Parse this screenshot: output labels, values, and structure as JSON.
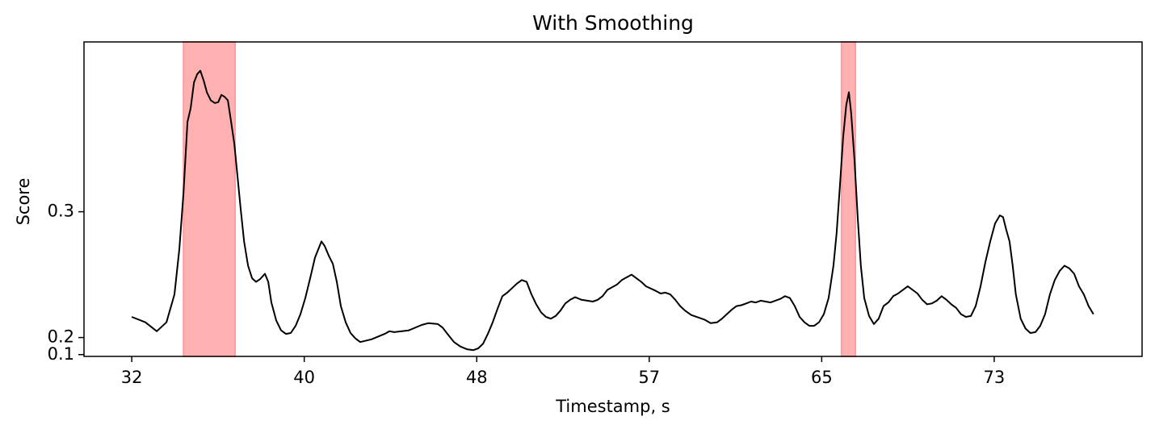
{
  "chart_data": {
    "type": "line",
    "title": "With Smoothing",
    "x_label": "Timestamp, s",
    "y_label": "Score",
    "xlim": [
      29.73,
      80.03
    ],
    "ylim": [
      0.139,
      0.489
    ],
    "xticks": [
      32,
      {
        "value": 40.2,
        "label": "40"
      },
      {
        "value": 48.4,
        "label": "48"
      },
      {
        "value": 56.6,
        "label": "57"
      },
      {
        "value": 64.8,
        "label": "65"
      },
      73
    ],
    "yticks": [
      {
        "value": 0.141,
        "label": "0.1"
      },
      {
        "value": 0.16,
        "label": "0.2"
      },
      0.3
    ],
    "spans": [
      [
        34.46,
        36.91
      ],
      [
        65.74,
        66.4
      ]
    ],
    "span_color": "#ff9e9e",
    "series": [
      {
        "color": "#000000",
        "x": [
          32.0,
          32.65,
          33.19,
          33.65,
          34.03,
          34.26,
          34.46,
          34.65,
          34.8,
          34.96,
          35.11,
          35.26,
          35.42,
          35.57,
          35.76,
          35.95,
          36.11,
          36.26,
          36.41,
          36.57,
          36.72,
          36.88,
          37.03,
          37.18,
          37.34,
          37.53,
          37.72,
          37.91,
          38.1,
          38.33,
          38.49,
          38.64,
          38.87,
          39.1,
          39.33,
          39.56,
          39.79,
          40.02,
          40.25,
          40.48,
          40.71,
          41.02,
          41.17,
          41.37,
          41.56,
          41.75,
          41.94,
          42.17,
          42.4,
          42.63,
          42.86,
          43.4,
          44.02,
          44.25,
          44.48,
          45.17,
          45.78,
          46.09,
          46.55,
          46.78,
          47.01,
          47.32,
          47.62,
          47.93,
          48.24,
          48.47,
          48.7,
          48.93,
          49.16,
          49.39,
          49.62,
          49.85,
          50.08,
          50.31,
          50.54,
          50.77,
          51.0,
          51.23,
          51.46,
          51.69,
          51.92,
          52.15,
          52.38,
          52.61,
          52.84,
          53.08,
          53.38,
          53.92,
          54.15,
          54.38,
          54.61,
          55.07,
          55.3,
          55.76,
          55.99,
          56.22,
          56.45,
          56.91,
          57.14,
          57.37,
          57.6,
          57.84,
          58.07,
          58.3,
          58.6,
          59.22,
          59.52,
          59.83,
          60.06,
          60.29,
          60.52,
          60.75,
          60.98,
          61.21,
          61.44,
          61.67,
          61.9,
          62.37,
          62.83,
          63.06,
          63.29,
          63.52,
          63.75,
          63.98,
          64.21,
          64.44,
          64.67,
          64.9,
          65.13,
          65.36,
          65.51,
          65.67,
          65.82,
          65.97,
          66.09,
          66.2,
          66.36,
          66.51,
          66.66,
          66.82,
          67.05,
          67.28,
          67.51,
          67.74,
          67.97,
          68.2,
          68.43,
          68.89,
          69.12,
          69.35,
          69.58,
          69.81,
          70.04,
          70.27,
          70.5,
          70.73,
          70.96,
          71.19,
          71.42,
          71.65,
          71.89,
          72.12,
          72.35,
          72.58,
          72.81,
          73.04,
          73.27,
          73.42,
          73.57,
          73.73,
          73.88,
          74.03,
          74.26,
          74.49,
          74.72,
          74.96,
          75.19,
          75.42,
          75.65,
          75.88,
          76.11,
          76.34,
          76.57,
          76.8,
          77.03,
          77.26,
          77.49,
          77.72
        ],
        "values": [
          0.183,
          0.177,
          0.167,
          0.177,
          0.208,
          0.258,
          0.321,
          0.4,
          0.415,
          0.444,
          0.453,
          0.457,
          0.446,
          0.433,
          0.424,
          0.421,
          0.422,
          0.43,
          0.428,
          0.424,
          0.401,
          0.375,
          0.339,
          0.303,
          0.267,
          0.24,
          0.226,
          0.222,
          0.225,
          0.231,
          0.222,
          0.199,
          0.179,
          0.168,
          0.164,
          0.165,
          0.173,
          0.186,
          0.204,
          0.226,
          0.249,
          0.267,
          0.262,
          0.251,
          0.242,
          0.222,
          0.195,
          0.177,
          0.165,
          0.159,
          0.155,
          0.158,
          0.164,
          0.167,
          0.166,
          0.168,
          0.174,
          0.176,
          0.175,
          0.171,
          0.164,
          0.155,
          0.15,
          0.147,
          0.146,
          0.148,
          0.153,
          0.164,
          0.177,
          0.192,
          0.206,
          0.21,
          0.215,
          0.22,
          0.224,
          0.222,
          0.208,
          0.197,
          0.188,
          0.183,
          0.181,
          0.184,
          0.19,
          0.198,
          0.202,
          0.205,
          0.202,
          0.2,
          0.202,
          0.206,
          0.213,
          0.219,
          0.224,
          0.23,
          0.226,
          0.222,
          0.217,
          0.212,
          0.209,
          0.21,
          0.208,
          0.202,
          0.195,
          0.19,
          0.185,
          0.18,
          0.176,
          0.177,
          0.181,
          0.186,
          0.191,
          0.195,
          0.196,
          0.198,
          0.2,
          0.199,
          0.201,
          0.199,
          0.203,
          0.206,
          0.204,
          0.195,
          0.183,
          0.177,
          0.173,
          0.173,
          0.177,
          0.186,
          0.204,
          0.24,
          0.276,
          0.33,
          0.383,
          0.419,
          0.433,
          0.41,
          0.357,
          0.294,
          0.24,
          0.204,
          0.184,
          0.175,
          0.181,
          0.195,
          0.199,
          0.206,
          0.209,
          0.217,
          0.213,
          0.209,
          0.202,
          0.197,
          0.198,
          0.201,
          0.206,
          0.202,
          0.197,
          0.193,
          0.186,
          0.183,
          0.184,
          0.195,
          0.217,
          0.244,
          0.267,
          0.287,
          0.296,
          0.294,
          0.28,
          0.267,
          0.24,
          0.208,
          0.181,
          0.17,
          0.165,
          0.166,
          0.173,
          0.186,
          0.208,
          0.224,
          0.234,
          0.24,
          0.237,
          0.231,
          0.217,
          0.208,
          0.195,
          0.186
        ]
      }
    ]
  }
}
